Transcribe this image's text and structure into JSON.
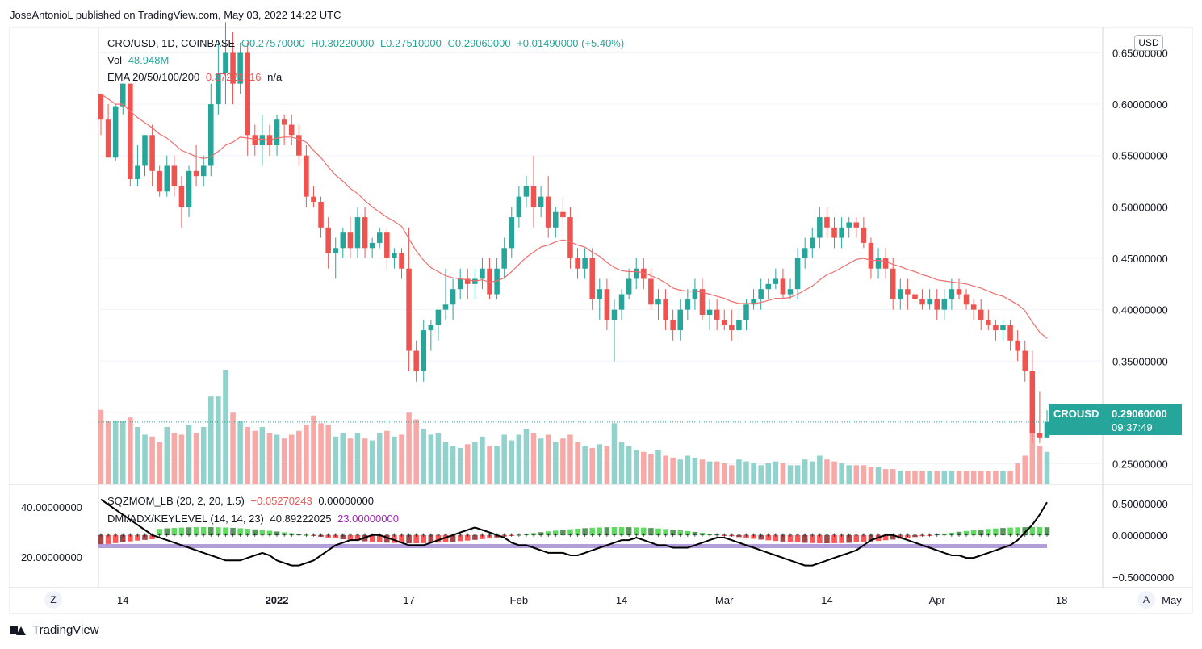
{
  "header": {
    "publisher": "JoseAntonioL published on TradingView.com, May 03, 2022 14:22 UTC"
  },
  "legend": {
    "symbol": "CRO/USD, 1D, COINBASE",
    "open": "O0.27570000",
    "high": "H0.30220000",
    "low": "L0.27510000",
    "close": "C0.29060000",
    "change": "+0.01490000 (+5.40%)",
    "vol_label": "Vol",
    "vol_value": "48.948M",
    "ema_label": "EMA 20/50/100/200",
    "ema_value": "0.37221516",
    "ema_na": "n/a",
    "sqz_label": "SQZMOM_LB (20, 2, 20, 1.5)",
    "sqz_value1": "−0.05270243",
    "sqz_value2": "0.00000000",
    "dmi_label": "DMI/ADX/KEYLEVEL (14, 14, 23)",
    "dmi_value1": "40.89222025",
    "dmi_value2": "23.00000000"
  },
  "currency_button": "USD",
  "price_tag": {
    "symbol": "CROUSD",
    "price": "0.29060000",
    "countdown": "09:37:49"
  },
  "corner_left": "Z",
  "corner_right": "A",
  "footer": {
    "brand": "TradingView"
  },
  "colors": {
    "up": "#26a69a",
    "down": "#ef5350",
    "ema": "#f06d6d",
    "adx": "#000000",
    "keylevel": "#b39ddb"
  },
  "chart_data": {
    "type": "candlestick",
    "price_axis": {
      "min": 0.23,
      "max": 0.67,
      "ticks": [
        "0.25000000",
        "0.30000000",
        "0.35000000",
        "0.40000000",
        "0.45000000",
        "0.50000000",
        "0.55000000",
        "0.60000000",
        "0.65000000"
      ],
      "tick_values": [
        0.25,
        0.3,
        0.35,
        0.4,
        0.45,
        0.5,
        0.55,
        0.6,
        0.65
      ]
    },
    "lower_right_axis": {
      "ticks": [
        "0.50000000",
        "0.00000000",
        "−0.50000000"
      ],
      "tick_values": [
        0.5,
        0,
        -0.5
      ]
    },
    "lower_left_axis": {
      "ticks": [
        "40.00000000",
        "20.00000000"
      ],
      "tick_values": [
        40,
        20
      ]
    },
    "time_axis": {
      "labels": [
        "14",
        "2022",
        "17",
        "Feb",
        "14",
        "Mar",
        "14",
        "Apr",
        "18",
        "May"
      ],
      "label_index": [
        3,
        24,
        42,
        57,
        71,
        85,
        99,
        114,
        131,
        146
      ]
    },
    "keylevel": 23,
    "last_close": 0.2906,
    "candles": [
      [
        0.61,
        0.61,
        0.57,
        0.585
      ],
      [
        0.585,
        0.6,
        0.55,
        0.548
      ],
      [
        0.548,
        0.6,
        0.545,
        0.598
      ],
      [
        0.598,
        0.62,
        0.59,
        0.62
      ],
      [
        0.62,
        0.62,
        0.52,
        0.527
      ],
      [
        0.527,
        0.56,
        0.52,
        0.54
      ],
      [
        0.54,
        0.57,
        0.53,
        0.57
      ],
      [
        0.57,
        0.58,
        0.52,
        0.535
      ],
      [
        0.535,
        0.54,
        0.51,
        0.515
      ],
      [
        0.515,
        0.55,
        0.51,
        0.54
      ],
      [
        0.54,
        0.55,
        0.51,
        0.52
      ],
      [
        0.52,
        0.53,
        0.48,
        0.5
      ],
      [
        0.5,
        0.54,
        0.49,
        0.535
      ],
      [
        0.535,
        0.56,
        0.52,
        0.53
      ],
      [
        0.53,
        0.55,
        0.52,
        0.54
      ],
      [
        0.54,
        0.62,
        0.53,
        0.6
      ],
      [
        0.6,
        0.66,
        0.59,
        0.63
      ],
      [
        0.63,
        0.68,
        0.6,
        0.65
      ],
      [
        0.65,
        0.67,
        0.6,
        0.62
      ],
      [
        0.62,
        0.66,
        0.61,
        0.65
      ],
      [
        0.65,
        0.66,
        0.55,
        0.57
      ],
      [
        0.57,
        0.58,
        0.55,
        0.56
      ],
      [
        0.56,
        0.59,
        0.54,
        0.57
      ],
      [
        0.57,
        0.58,
        0.55,
        0.56
      ],
      [
        0.56,
        0.59,
        0.55,
        0.585
      ],
      [
        0.585,
        0.59,
        0.56,
        0.58
      ],
      [
        0.58,
        0.59,
        0.56,
        0.57
      ],
      [
        0.57,
        0.58,
        0.54,
        0.55
      ],
      [
        0.55,
        0.56,
        0.5,
        0.51
      ],
      [
        0.51,
        0.52,
        0.5,
        0.505
      ],
      [
        0.505,
        0.51,
        0.47,
        0.48
      ],
      [
        0.48,
        0.49,
        0.44,
        0.455
      ],
      [
        0.455,
        0.47,
        0.43,
        0.46
      ],
      [
        0.46,
        0.48,
        0.45,
        0.475
      ],
      [
        0.475,
        0.49,
        0.45,
        0.46
      ],
      [
        0.46,
        0.5,
        0.45,
        0.49
      ],
      [
        0.49,
        0.5,
        0.45,
        0.46
      ],
      [
        0.46,
        0.47,
        0.45,
        0.465
      ],
      [
        0.465,
        0.48,
        0.46,
        0.475
      ],
      [
        0.475,
        0.48,
        0.44,
        0.45
      ],
      [
        0.45,
        0.46,
        0.44,
        0.455
      ],
      [
        0.455,
        0.46,
        0.43,
        0.44
      ],
      [
        0.44,
        0.48,
        0.34,
        0.36
      ],
      [
        0.36,
        0.37,
        0.33,
        0.34
      ],
      [
        0.34,
        0.39,
        0.33,
        0.38
      ],
      [
        0.38,
        0.39,
        0.36,
        0.385
      ],
      [
        0.385,
        0.4,
        0.37,
        0.4
      ],
      [
        0.4,
        0.44,
        0.39,
        0.405
      ],
      [
        0.405,
        0.43,
        0.39,
        0.42
      ],
      [
        0.42,
        0.44,
        0.41,
        0.43
      ],
      [
        0.43,
        0.44,
        0.41,
        0.425
      ],
      [
        0.425,
        0.44,
        0.41,
        0.43
      ],
      [
        0.43,
        0.45,
        0.42,
        0.44
      ],
      [
        0.44,
        0.45,
        0.41,
        0.415
      ],
      [
        0.415,
        0.45,
        0.41,
        0.44
      ],
      [
        0.44,
        0.47,
        0.43,
        0.46
      ],
      [
        0.46,
        0.5,
        0.45,
        0.49
      ],
      [
        0.49,
        0.52,
        0.48,
        0.51
      ],
      [
        0.51,
        0.53,
        0.5,
        0.52
      ],
      [
        0.52,
        0.55,
        0.48,
        0.5
      ],
      [
        0.5,
        0.52,
        0.49,
        0.51
      ],
      [
        0.51,
        0.53,
        0.47,
        0.48
      ],
      [
        0.48,
        0.5,
        0.47,
        0.495
      ],
      [
        0.495,
        0.51,
        0.48,
        0.49
      ],
      [
        0.49,
        0.5,
        0.44,
        0.45
      ],
      [
        0.45,
        0.46,
        0.43,
        0.44
      ],
      [
        0.44,
        0.46,
        0.43,
        0.45
      ],
      [
        0.45,
        0.46,
        0.4,
        0.41
      ],
      [
        0.41,
        0.43,
        0.39,
        0.42
      ],
      [
        0.42,
        0.43,
        0.38,
        0.39
      ],
      [
        0.39,
        0.41,
        0.35,
        0.4
      ],
      [
        0.4,
        0.42,
        0.39,
        0.415
      ],
      [
        0.415,
        0.44,
        0.41,
        0.43
      ],
      [
        0.43,
        0.45,
        0.42,
        0.44
      ],
      [
        0.44,
        0.45,
        0.42,
        0.43
      ],
      [
        0.43,
        0.44,
        0.4,
        0.405
      ],
      [
        0.405,
        0.42,
        0.39,
        0.41
      ],
      [
        0.41,
        0.42,
        0.38,
        0.39
      ],
      [
        0.39,
        0.4,
        0.37,
        0.38
      ],
      [
        0.38,
        0.41,
        0.37,
        0.4
      ],
      [
        0.4,
        0.42,
        0.39,
        0.41
      ],
      [
        0.41,
        0.43,
        0.4,
        0.42
      ],
      [
        0.42,
        0.43,
        0.39,
        0.395
      ],
      [
        0.395,
        0.41,
        0.38,
        0.4
      ],
      [
        0.4,
        0.41,
        0.38,
        0.39
      ],
      [
        0.39,
        0.4,
        0.38,
        0.385
      ],
      [
        0.385,
        0.4,
        0.37,
        0.38
      ],
      [
        0.38,
        0.4,
        0.37,
        0.39
      ],
      [
        0.39,
        0.41,
        0.38,
        0.405
      ],
      [
        0.405,
        0.42,
        0.4,
        0.41
      ],
      [
        0.41,
        0.43,
        0.4,
        0.42
      ],
      [
        0.42,
        0.43,
        0.41,
        0.425
      ],
      [
        0.425,
        0.44,
        0.42,
        0.43
      ],
      [
        0.43,
        0.44,
        0.41,
        0.415
      ],
      [
        0.415,
        0.43,
        0.41,
        0.42
      ],
      [
        0.42,
        0.46,
        0.41,
        0.45
      ],
      [
        0.45,
        0.47,
        0.44,
        0.46
      ],
      [
        0.46,
        0.48,
        0.45,
        0.47
      ],
      [
        0.47,
        0.5,
        0.46,
        0.49
      ],
      [
        0.49,
        0.5,
        0.47,
        0.48
      ],
      [
        0.48,
        0.49,
        0.46,
        0.47
      ],
      [
        0.47,
        0.49,
        0.46,
        0.48
      ],
      [
        0.48,
        0.49,
        0.47,
        0.485
      ],
      [
        0.485,
        0.49,
        0.47,
        0.48
      ],
      [
        0.48,
        0.49,
        0.46,
        0.465
      ],
      [
        0.465,
        0.47,
        0.43,
        0.44
      ],
      [
        0.44,
        0.46,
        0.43,
        0.45
      ],
      [
        0.45,
        0.46,
        0.43,
        0.44
      ],
      [
        0.44,
        0.45,
        0.4,
        0.41
      ],
      [
        0.41,
        0.43,
        0.4,
        0.42
      ],
      [
        0.42,
        0.43,
        0.4,
        0.415
      ],
      [
        0.415,
        0.42,
        0.4,
        0.41
      ],
      [
        0.41,
        0.42,
        0.4,
        0.405
      ],
      [
        0.405,
        0.42,
        0.4,
        0.41
      ],
      [
        0.41,
        0.42,
        0.39,
        0.4
      ],
      [
        0.4,
        0.42,
        0.39,
        0.41
      ],
      [
        0.41,
        0.43,
        0.4,
        0.42
      ],
      [
        0.42,
        0.43,
        0.41,
        0.415
      ],
      [
        0.415,
        0.42,
        0.4,
        0.405
      ],
      [
        0.405,
        0.41,
        0.39,
        0.4
      ],
      [
        0.4,
        0.41,
        0.38,
        0.39
      ],
      [
        0.39,
        0.4,
        0.38,
        0.385
      ],
      [
        0.385,
        0.39,
        0.37,
        0.38
      ],
      [
        0.38,
        0.39,
        0.37,
        0.385
      ],
      [
        0.385,
        0.39,
        0.36,
        0.37
      ],
      [
        0.37,
        0.38,
        0.35,
        0.36
      ],
      [
        0.36,
        0.37,
        0.33,
        0.34
      ],
      [
        0.34,
        0.36,
        0.27,
        0.28
      ],
      [
        0.28,
        0.32,
        0.27,
        0.2757
      ],
      [
        0.2757,
        0.3022,
        0.2751,
        0.2906
      ]
    ],
    "volume": [
      78,
      66,
      66,
      66,
      70,
      60,
      52,
      50,
      44,
      60,
      54,
      52,
      62,
      54,
      60,
      92,
      92,
      120,
      75,
      66,
      60,
      56,
      60,
      54,
      52,
      48,
      52,
      56,
      62,
      72,
      64,
      62,
      50,
      54,
      48,
      54,
      48,
      46,
      54,
      56,
      50,
      52,
      75,
      68,
      58,
      52,
      54,
      44,
      40,
      38,
      42,
      44,
      50,
      40,
      40,
      52,
      46,
      52,
      58,
      54,
      48,
      52,
      44,
      48,
      52,
      44,
      40,
      38,
      42,
      40,
      64,
      44,
      40,
      36,
      34,
      32,
      36,
      30,
      28,
      26,
      30,
      28,
      26,
      24,
      24,
      22,
      20,
      26,
      24,
      22,
      20,
      22,
      24,
      22,
      20,
      20,
      26,
      24,
      30,
      26,
      24,
      22,
      20,
      20,
      20,
      18,
      18,
      16,
      16,
      14,
      14,
      14,
      14,
      14,
      14,
      14,
      14,
      14,
      14,
      14,
      14,
      14,
      14,
      14,
      14,
      22,
      30,
      60,
      40,
      34
    ],
    "ema": [
      0.61,
      0.605,
      0.6,
      0.6,
      0.593,
      0.587,
      0.582,
      0.577,
      0.571,
      0.567,
      0.561,
      0.555,
      0.552,
      0.549,
      0.547,
      0.549,
      0.554,
      0.56,
      0.563,
      0.568,
      0.567,
      0.566,
      0.566,
      0.565,
      0.567,
      0.568,
      0.568,
      0.566,
      0.563,
      0.555,
      0.548,
      0.539,
      0.531,
      0.525,
      0.518,
      0.513,
      0.506,
      0.5,
      0.495,
      0.49,
      0.486,
      0.481,
      0.469,
      0.457,
      0.448,
      0.441,
      0.437,
      0.433,
      0.431,
      0.43,
      0.429,
      0.428,
      0.429,
      0.427,
      0.428,
      0.431,
      0.437,
      0.444,
      0.451,
      0.456,
      0.461,
      0.463,
      0.466,
      0.468,
      0.466,
      0.463,
      0.461,
      0.456,
      0.452,
      0.446,
      0.441,
      0.438,
      0.437,
      0.437,
      0.436,
      0.433,
      0.43,
      0.426,
      0.421,
      0.419,
      0.418,
      0.418,
      0.417,
      0.415,
      0.413,
      0.411,
      0.408,
      0.406,
      0.406,
      0.406,
      0.407,
      0.409,
      0.411,
      0.411,
      0.412,
      0.415,
      0.419,
      0.423,
      0.429,
      0.434,
      0.437,
      0.441,
      0.445,
      0.449,
      0.45,
      0.448,
      0.448,
      0.447,
      0.444,
      0.442,
      0.439,
      0.437,
      0.434,
      0.432,
      0.429,
      0.428,
      0.427,
      0.426,
      0.425,
      0.423,
      0.421,
      0.418,
      0.415,
      0.413,
      0.409,
      0.405,
      0.399,
      0.388,
      0.378,
      0.372
    ],
    "adx": [
      42,
      40,
      38,
      36,
      34,
      32,
      30,
      28,
      27,
      26,
      25,
      24,
      23,
      22,
      21,
      20,
      19,
      18,
      18,
      18,
      19,
      20,
      21,
      20,
      18,
      17,
      16,
      16,
      17,
      18,
      20,
      22,
      24,
      25,
      26,
      26,
      27,
      28,
      28,
      27,
      26,
      25,
      24,
      24,
      24,
      25,
      26,
      27,
      28,
      29,
      30,
      31,
      30,
      29,
      28,
      27,
      25,
      24,
      24,
      23,
      22,
      21,
      21,
      21,
      20,
      20,
      21,
      22,
      23,
      24,
      25,
      26,
      26,
      27,
      26,
      25,
      24,
      24,
      23,
      23,
      23,
      24,
      25,
      26,
      27,
      27,
      26,
      25,
      24,
      23,
      22,
      21,
      20,
      19,
      18,
      17,
      16,
      16,
      17,
      18,
      19,
      20,
      21,
      22,
      24,
      26,
      27,
      28,
      28,
      27,
      26,
      25,
      24,
      23,
      22,
      21,
      20,
      20,
      19,
      19,
      20,
      21,
      22,
      23,
      24,
      26,
      29,
      32,
      36,
      40.9
    ]
  }
}
